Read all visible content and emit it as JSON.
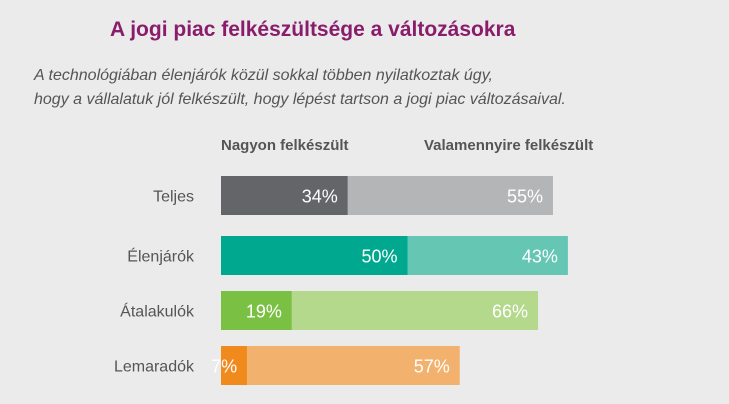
{
  "title": "A jogi piac felkészültsége a változásokra",
  "subtitle_line1": "A technológiában élenjárók közül sokkal többen nyilatkoztak úgy,",
  "subtitle_line2": "hogy a vállalatuk jól felkészült, hogy lépést tartson a jogi piac változásaival.",
  "chart_data": {
    "type": "bar",
    "orientation": "horizontal",
    "stacked": true,
    "title": "A jogi piac felkészültsége a változásokra",
    "categories": [
      "Teljes",
      "Élenjárók",
      "Átalakulók",
      "Lemaradók"
    ],
    "series": [
      {
        "name": "Nagyon felkészült",
        "values": [
          34,
          50,
          19,
          7
        ],
        "labels": [
          "34%",
          "50%",
          "19%",
          "7%"
        ]
      },
      {
        "name": "Valamennyire felkészült",
        "values": [
          55,
          43,
          66,
          57
        ],
        "labels": [
          "55%",
          "43%",
          "66%",
          "57%"
        ]
      }
    ],
    "colors": [
      [
        "#646569",
        "#b4b5b7"
      ],
      [
        "#00a88f",
        "#64c6b3"
      ],
      [
        "#7ac143",
        "#b4d98c"
      ],
      [
        "#f18a1c",
        "#f2b16c"
      ]
    ],
    "xlim": [
      0,
      100
    ],
    "legend_position": "top",
    "grid": false
  }
}
